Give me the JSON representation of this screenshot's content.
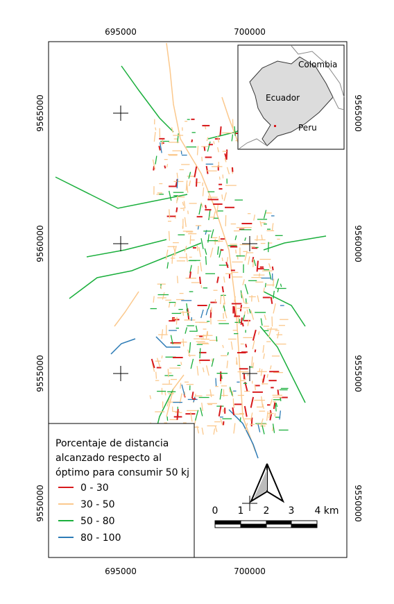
{
  "map": {
    "x_labels": [
      "695000",
      "700000"
    ],
    "y_labels": [
      "9565000",
      "9560000",
      "9555000",
      "9550000"
    ],
    "inset": {
      "labels": [
        "Colombia",
        "Ecuador",
        "Peru"
      ]
    },
    "legend": {
      "title": [
        "Porcentaje de distancia",
        "alcanzado respecto al",
        "óptimo para consumir 50 kj"
      ],
      "items": [
        {
          "label": "0 - 30",
          "color": "#d7191c"
        },
        {
          "label": "30 - 50",
          "color": "#fbc88c"
        },
        {
          "label": "50 - 80",
          "color": "#1aaf3c"
        },
        {
          "label": "80 - 100",
          "color": "#2c7bb6"
        }
      ]
    },
    "scale_bar": {
      "labels": [
        "0",
        "1",
        "2",
        "3",
        "4 km"
      ]
    }
  }
}
